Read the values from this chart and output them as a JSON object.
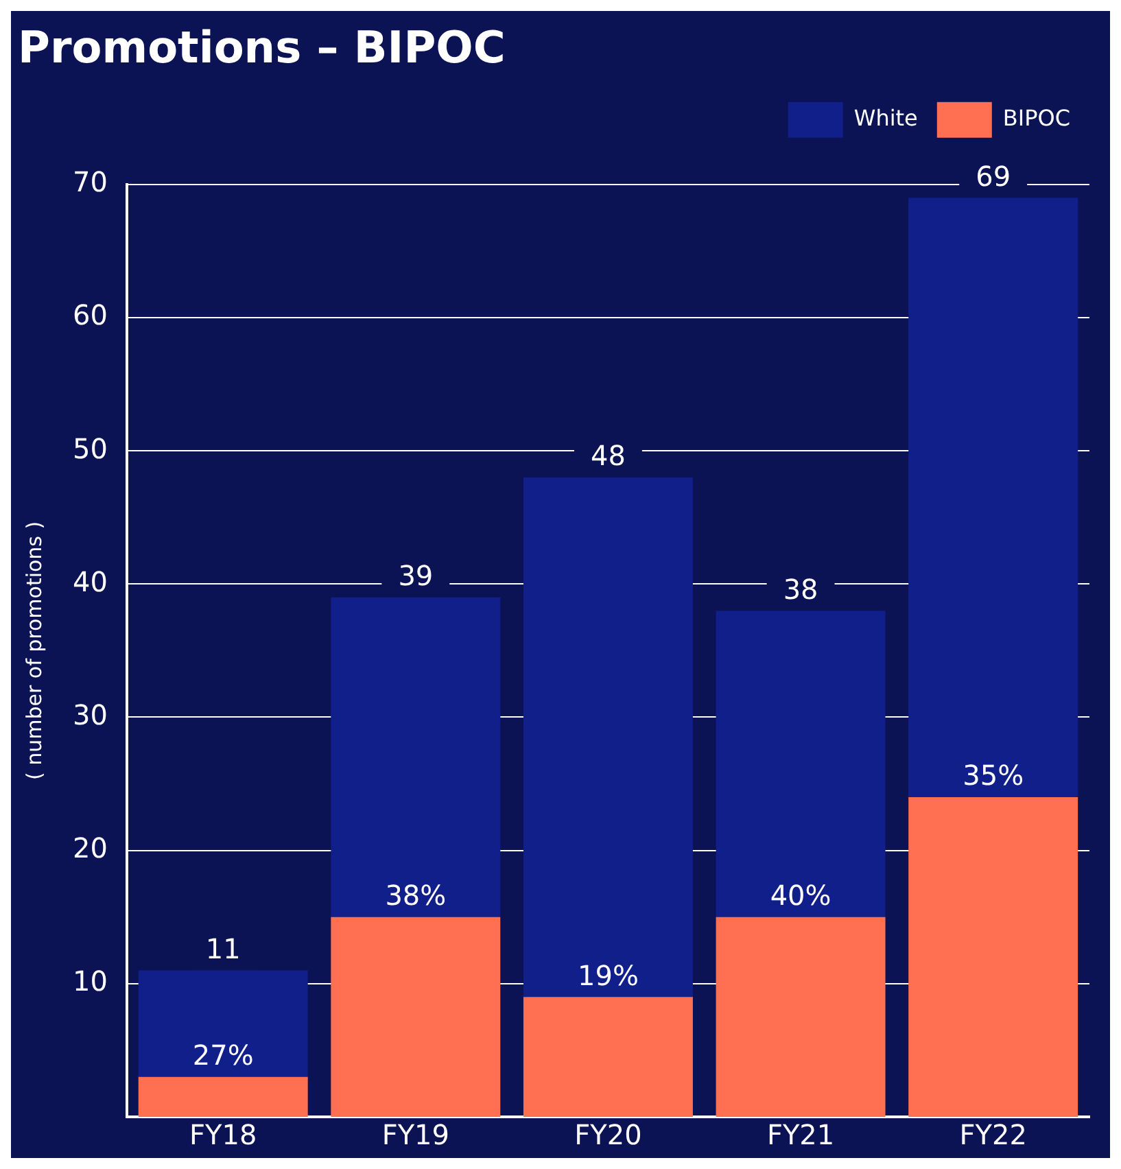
{
  "chart_data": {
    "type": "bar",
    "title": "Promotions – BIPOC",
    "ylabel": "( number of promotions )",
    "categories": [
      "FY18",
      "FY19",
      "FY20",
      "FY21",
      "FY22"
    ],
    "stacked": true,
    "series": [
      {
        "name": "BIPOC",
        "color": "#ff7052",
        "values": [
          3,
          15,
          9,
          15,
          24
        ]
      },
      {
        "name": "White",
        "color": "#111f8a",
        "values": [
          8,
          24,
          39,
          23,
          45
        ]
      }
    ],
    "annotations": [
      {
        "text": "27%",
        "x": "FY18",
        "y": 3
      },
      {
        "text": "38%",
        "x": "FY19",
        "y": 15
      },
      {
        "text": "19%",
        "x": "FY20",
        "y": 9
      },
      {
        "text": "40%",
        "x": "FY21",
        "y": 15
      },
      {
        "text": "35%",
        "x": "FY22",
        "y": 24
      }
    ],
    "totals": [
      "11",
      "39",
      "48",
      "38",
      "69"
    ],
    "ylim": [
      0,
      70
    ],
    "yticks": [
      10,
      20,
      30,
      40,
      50,
      60,
      70
    ],
    "grid": "y",
    "legend": "top right"
  }
}
